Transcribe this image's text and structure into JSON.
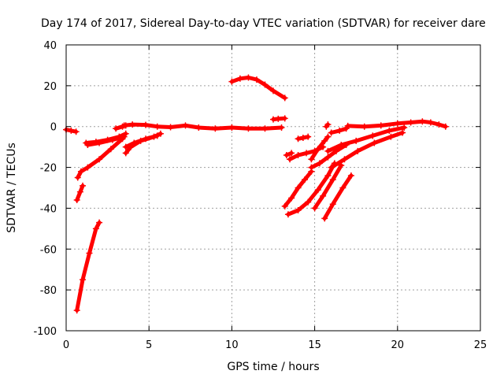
{
  "chart_data": {
    "type": "scatter",
    "title": "Day 174 of 2017, Sidereal Day-to-day VTEC variation (SDTVAR) for receiver dare",
    "xlabel": "GPS time / hours",
    "ylabel": "SDTVAR / TECUs",
    "xlim": [
      0,
      25
    ],
    "ylim": [
      -100,
      40
    ],
    "xticks": [
      0,
      5,
      10,
      15,
      20,
      25
    ],
    "yticks": [
      -100,
      -80,
      -60,
      -40,
      -20,
      0,
      20,
      40
    ],
    "grid": true,
    "marker": "+",
    "color": "#ff0000",
    "series": [
      {
        "points": [
          [
            0.0,
            -1.5
          ],
          [
            0.3,
            -2
          ],
          [
            0.6,
            -2.5
          ]
        ]
      },
      {
        "points": [
          [
            0.65,
            -90
          ],
          [
            1.0,
            -75
          ],
          [
            1.4,
            -62
          ],
          [
            1.8,
            -50
          ],
          [
            2.0,
            -47
          ]
        ]
      },
      {
        "points": [
          [
            0.65,
            -36
          ],
          [
            0.85,
            -32
          ],
          [
            1.0,
            -29
          ]
        ]
      },
      {
        "points": [
          [
            0.7,
            -25
          ],
          [
            0.9,
            -22
          ],
          [
            1.3,
            -20
          ],
          [
            2.0,
            -16
          ],
          [
            2.7,
            -11
          ],
          [
            3.4,
            -6
          ]
        ]
      },
      {
        "points": [
          [
            1.2,
            -8
          ],
          [
            1.8,
            -7.5
          ],
          [
            2.5,
            -6.5
          ],
          [
            3.2,
            -5
          ],
          [
            3.6,
            -3.5
          ]
        ]
      },
      {
        "points": [
          [
            1.3,
            -9
          ],
          [
            2.0,
            -8
          ],
          [
            2.8,
            -6.5
          ],
          [
            3.5,
            -5
          ]
        ]
      },
      {
        "points": [
          [
            3.0,
            -1
          ],
          [
            3.4,
            0
          ],
          [
            3.6,
            0.5
          ]
        ]
      },
      {
        "points": [
          [
            3.6,
            -13
          ],
          [
            3.9,
            -10
          ],
          [
            4.5,
            -7
          ],
          [
            5.3,
            -5
          ],
          [
            5.7,
            -3.5
          ]
        ]
      },
      {
        "points": [
          [
            3.6,
            -10
          ],
          [
            4.1,
            -8
          ],
          [
            4.8,
            -6
          ],
          [
            5.5,
            -4.5
          ]
        ]
      },
      {
        "points": [
          [
            3.5,
            0.5
          ],
          [
            4.0,
            1
          ],
          [
            4.8,
            0.8
          ],
          [
            5.5,
            0
          ],
          [
            6.3,
            -0.3
          ],
          [
            7.2,
            0.5
          ],
          [
            8.0,
            -0.5
          ],
          [
            9.0,
            -1
          ],
          [
            10.0,
            -0.5
          ],
          [
            11.0,
            -1
          ],
          [
            12.0,
            -1
          ],
          [
            13.0,
            -0.5
          ]
        ]
      },
      {
        "points": [
          [
            10.0,
            22
          ],
          [
            10.5,
            23.5
          ],
          [
            11.0,
            24
          ],
          [
            11.5,
            23
          ],
          [
            12.0,
            20.5
          ],
          [
            12.5,
            17.5
          ],
          [
            13.2,
            14
          ]
        ]
      },
      {
        "points": [
          [
            12.5,
            3.5
          ],
          [
            12.8,
            3.8
          ],
          [
            13.2,
            4
          ]
        ]
      },
      {
        "points": [
          [
            13.2,
            -39
          ],
          [
            13.6,
            -35
          ],
          [
            14.0,
            -30
          ],
          [
            14.4,
            -26
          ],
          [
            14.8,
            -22
          ]
        ]
      },
      {
        "points": [
          [
            13.4,
            -43
          ],
          [
            14.0,
            -41
          ],
          [
            14.6,
            -37
          ],
          [
            15.2,
            -31
          ],
          [
            15.8,
            -24
          ],
          [
            16.2,
            -18
          ]
        ]
      },
      {
        "points": [
          [
            13.3,
            -14
          ],
          [
            13.6,
            -13
          ]
        ]
      },
      {
        "points": [
          [
            13.5,
            -16
          ],
          [
            14.0,
            -14
          ],
          [
            14.5,
            -13
          ],
          [
            15.0,
            -12
          ],
          [
            15.5,
            -10
          ]
        ]
      },
      {
        "points": [
          [
            14.0,
            -6
          ],
          [
            14.3,
            -5.5
          ],
          [
            14.6,
            -5
          ]
        ]
      },
      {
        "points": [
          [
            14.8,
            -16
          ],
          [
            15.2,
            -11
          ],
          [
            15.6,
            -7
          ],
          [
            15.8,
            -5
          ]
        ]
      },
      {
        "points": [
          [
            14.8,
            -20
          ],
          [
            15.3,
            -18
          ],
          [
            15.8,
            -15
          ],
          [
            16.3,
            -12
          ],
          [
            16.9,
            -9
          ]
        ]
      },
      {
        "points": [
          [
            15.0,
            -40
          ],
          [
            15.5,
            -34
          ],
          [
            16.1,
            -26
          ],
          [
            16.6,
            -19
          ]
        ]
      },
      {
        "points": [
          [
            15.6,
            -45
          ],
          [
            16.1,
            -38
          ],
          [
            16.7,
            -30
          ],
          [
            17.2,
            -24
          ]
        ]
      },
      {
        "points": [
          [
            15.7,
            0
          ],
          [
            15.8,
            1
          ]
        ]
      },
      {
        "points": [
          [
            16.0,
            -20
          ],
          [
            16.8,
            -16
          ],
          [
            17.6,
            -12
          ],
          [
            18.6,
            -8
          ],
          [
            19.6,
            -5
          ],
          [
            20.3,
            -3
          ]
        ]
      },
      {
        "points": [
          [
            15.8,
            -12
          ],
          [
            16.6,
            -9
          ],
          [
            17.5,
            -7
          ],
          [
            18.5,
            -4.5
          ],
          [
            19.5,
            -2
          ],
          [
            20.4,
            -0.5
          ]
        ]
      },
      {
        "points": [
          [
            16.0,
            -3
          ],
          [
            16.5,
            -2
          ],
          [
            16.9,
            -1
          ]
        ]
      },
      {
        "points": [
          [
            17.0,
            0.3
          ],
          [
            18.0,
            0
          ],
          [
            19.0,
            0.5
          ],
          [
            20.0,
            1.5
          ],
          [
            20.8,
            2
          ],
          [
            21.5,
            2.5
          ],
          [
            22.0,
            2
          ],
          [
            22.5,
            1
          ],
          [
            22.9,
            0
          ]
        ]
      }
    ]
  }
}
